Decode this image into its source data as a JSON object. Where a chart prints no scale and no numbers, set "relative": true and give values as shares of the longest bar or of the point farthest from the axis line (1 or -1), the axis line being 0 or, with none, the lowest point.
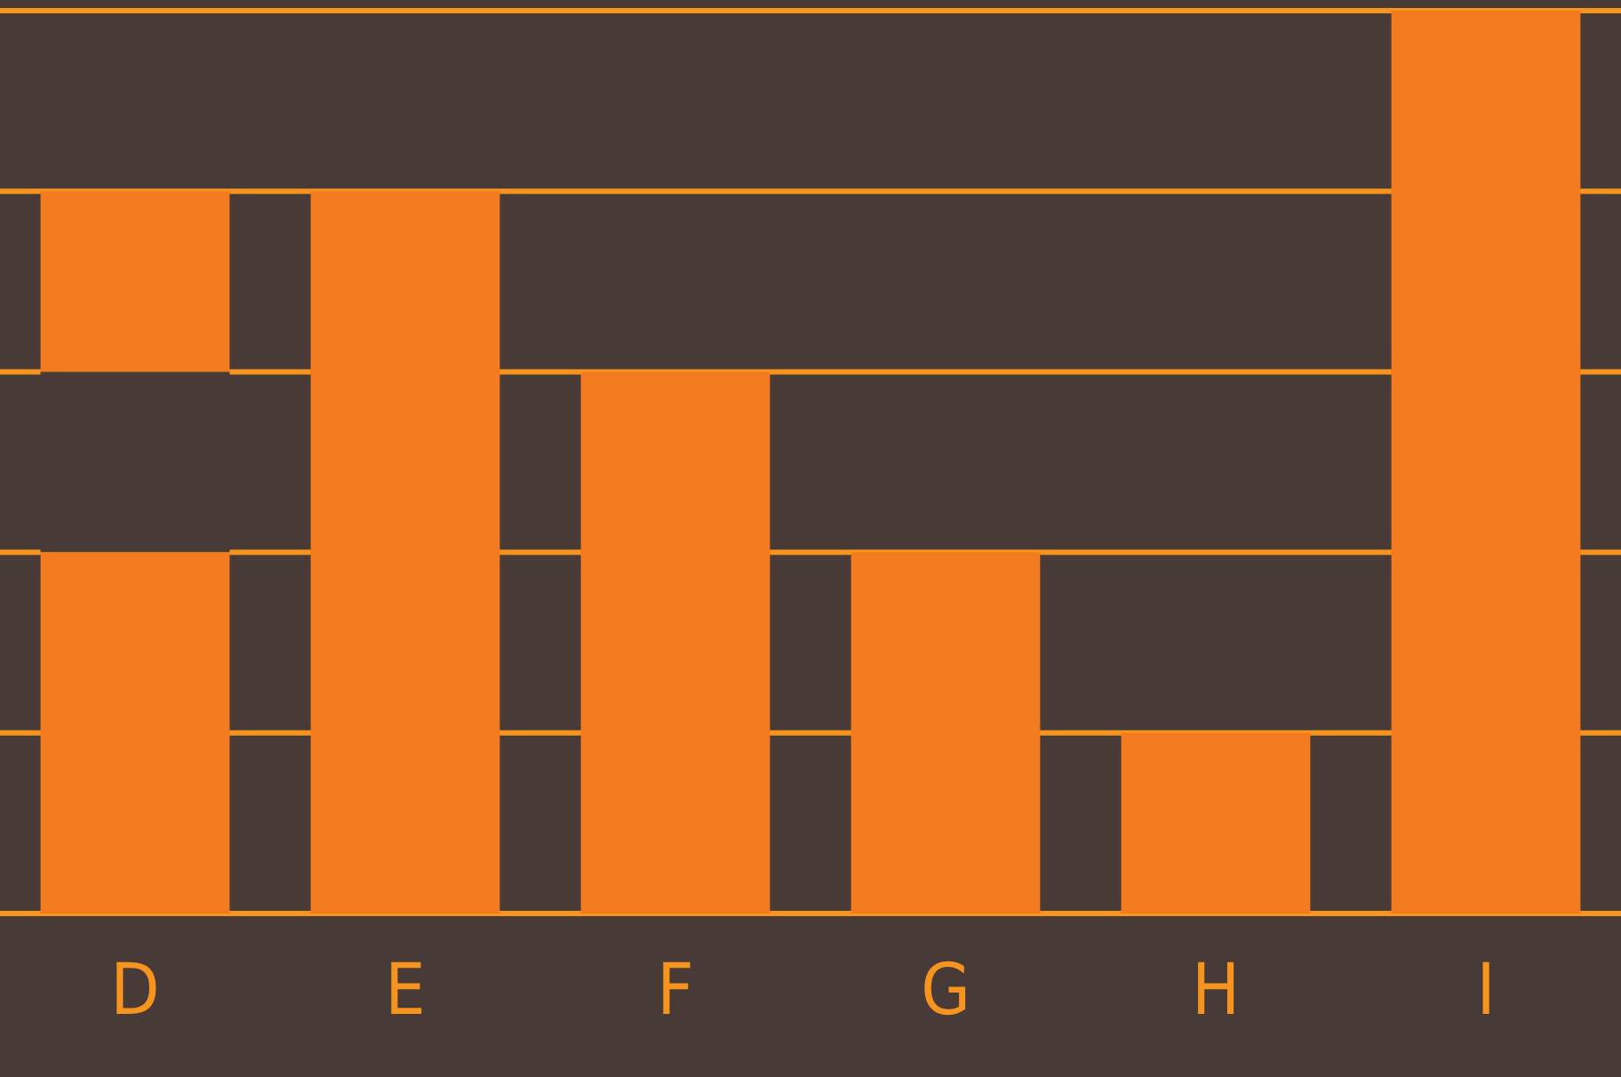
{
  "chart_data": {
    "type": "bar",
    "relative": true,
    "stacked": true,
    "categories": [
      "D",
      "E",
      "F",
      "G",
      "H",
      "I"
    ],
    "series": [
      {
        "color": "#f47a20",
        "values": [
          0.4,
          0.8,
          0.6,
          0.4,
          0.2,
          1
        ]
      },
      {
        "color": "#483a37",
        "values": [
          0.2,
          0,
          0,
          0,
          0,
          0
        ]
      },
      {
        "color": "#f47a20",
        "values": [
          0.2,
          0,
          0,
          0,
          0,
          0
        ]
      }
    ],
    "ref_lines": [
      {
        "axis": "y",
        "value": 0.2,
        "color": "#f7941d"
      },
      {
        "axis": "y",
        "value": 0.4,
        "color": "#f7941d"
      },
      {
        "axis": "y",
        "value": 0.6,
        "color": "#f7941d"
      },
      {
        "axis": "y",
        "value": 0.8,
        "color": "#f7941d"
      },
      {
        "axis": "y",
        "value": 1,
        "color": "#f7941d"
      }
    ]
  }
}
